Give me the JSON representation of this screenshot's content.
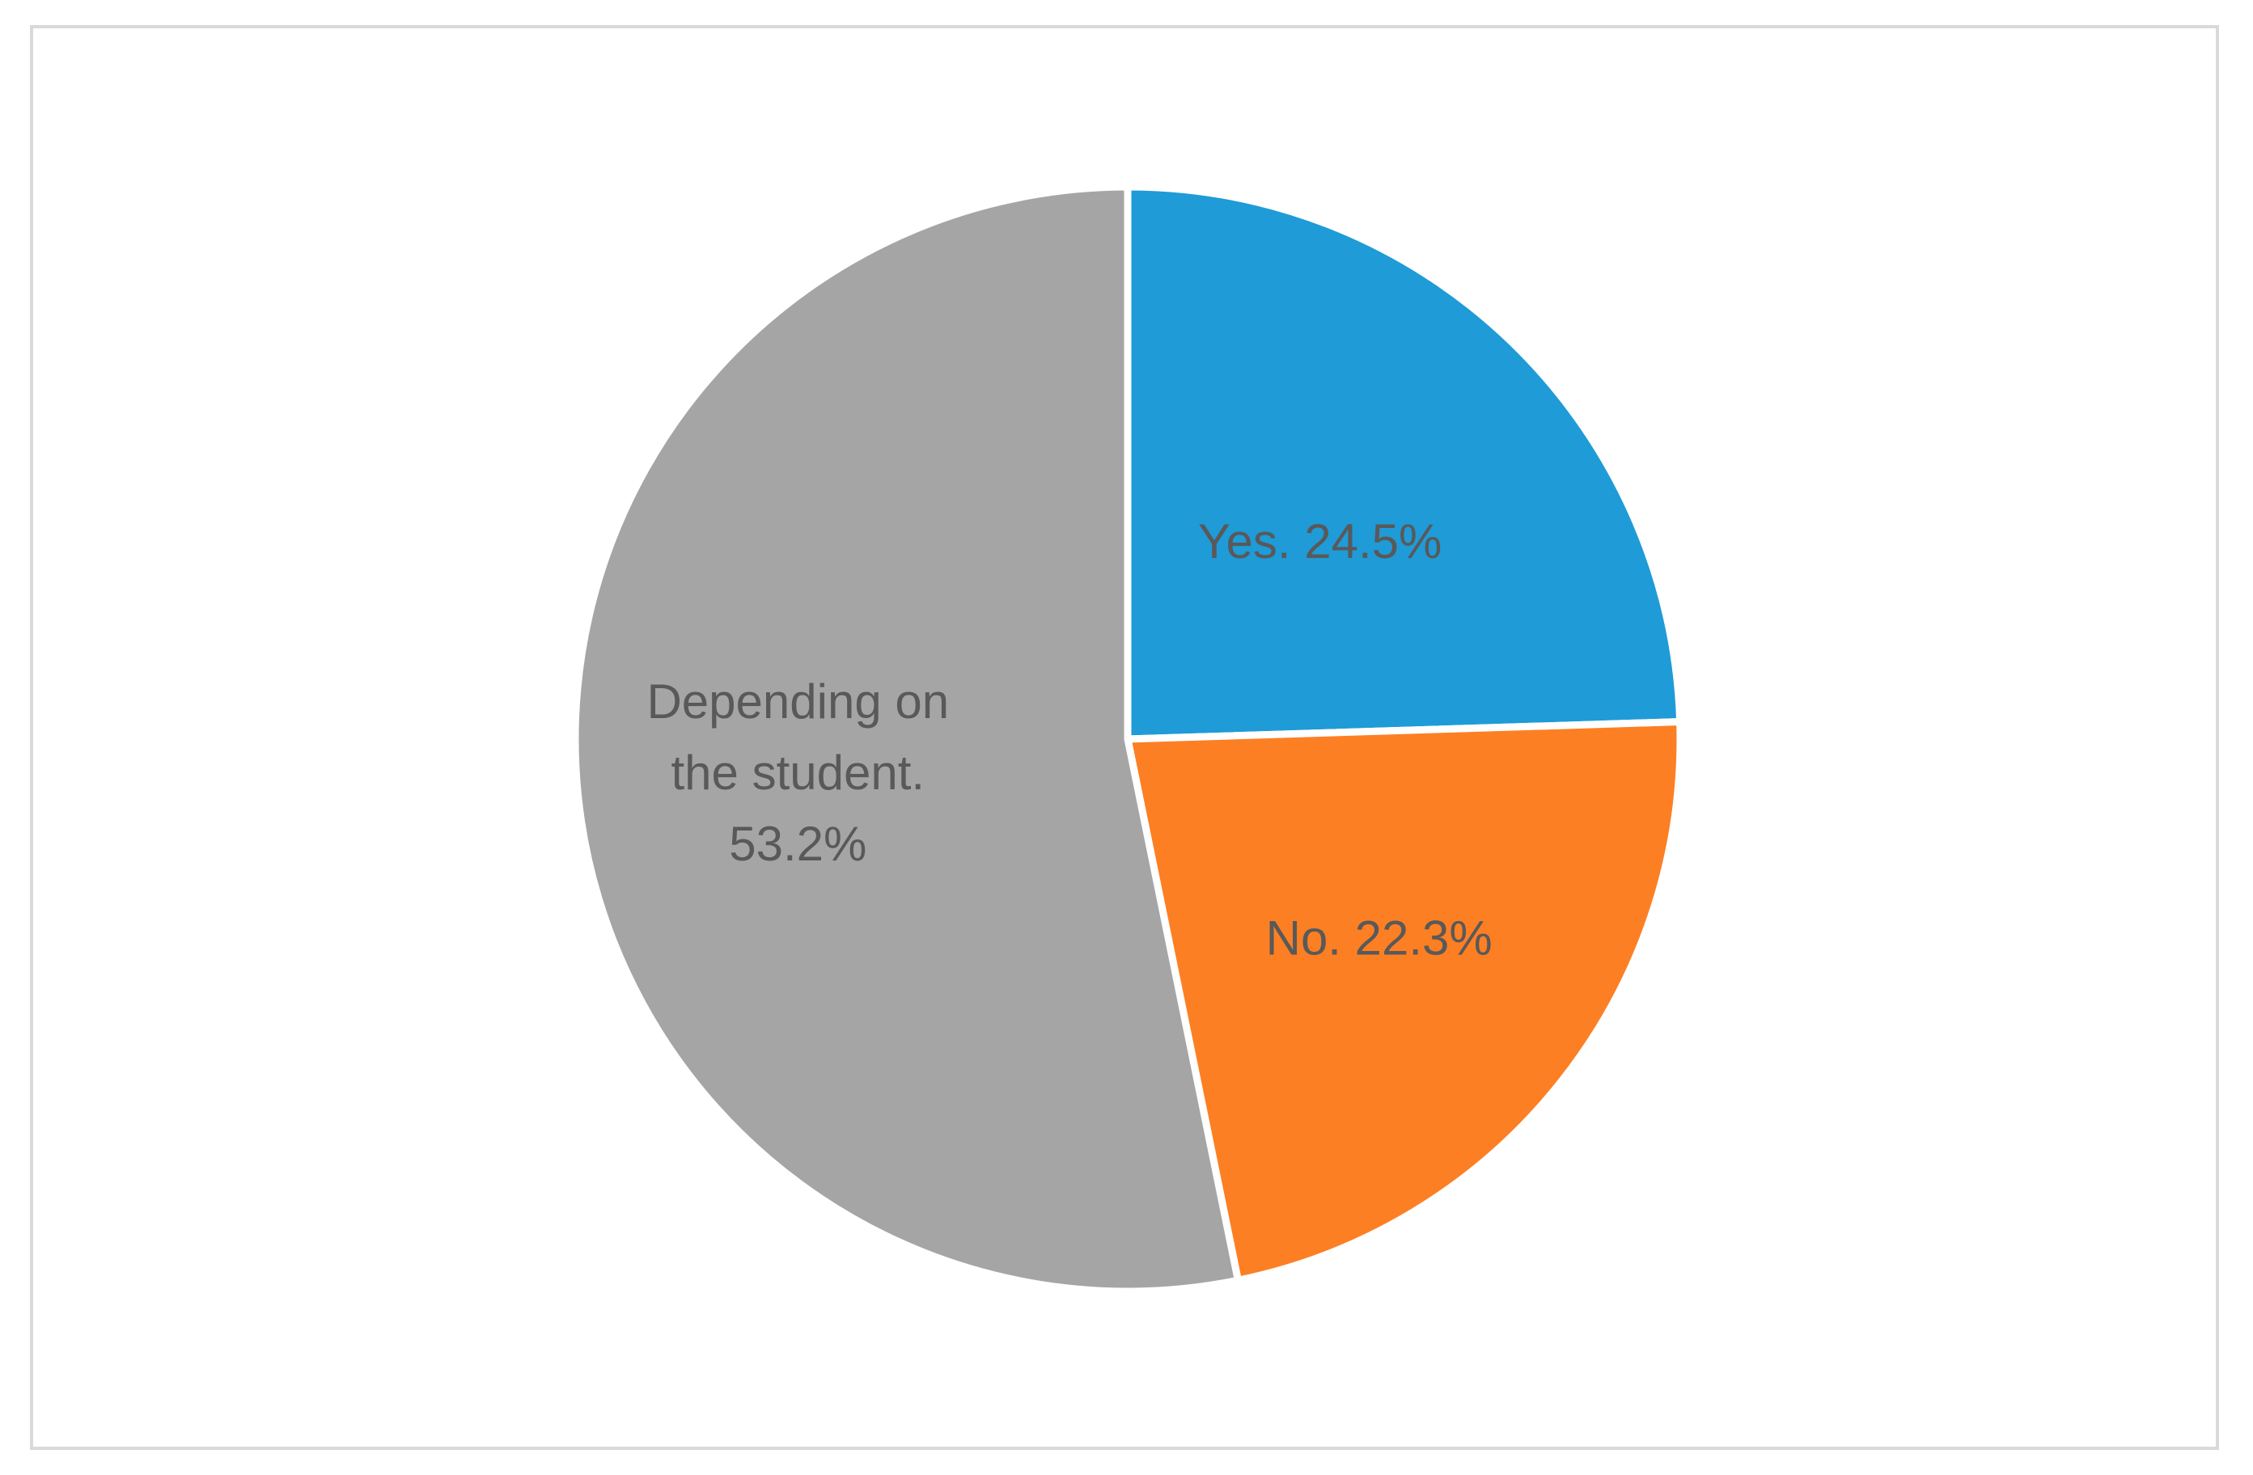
{
  "chart_data": {
    "type": "pie",
    "title": "",
    "slices": [
      {
        "label": "Yes.",
        "value": 24.5,
        "display": "Yes. 24.5%",
        "color": "#1f9bd7",
        "label_lines": [
          "Yes. 24.5%"
        ]
      },
      {
        "label": "No.",
        "value": 22.3,
        "display": "No. 22.3%",
        "color": "#fd7f23",
        "label_lines": [
          "No. 22.3%"
        ]
      },
      {
        "label": "Depending on the student.",
        "value": 53.2,
        "display": "Depending on the student. 53.2%",
        "color": "#a5a5a5",
        "label_lines": [
          "Depending on",
          "the student.",
          "53.2%"
        ]
      }
    ],
    "start_angle_deg": 0,
    "direction": "clockwise",
    "legend": "none",
    "border_color": "#d9d9d9"
  }
}
